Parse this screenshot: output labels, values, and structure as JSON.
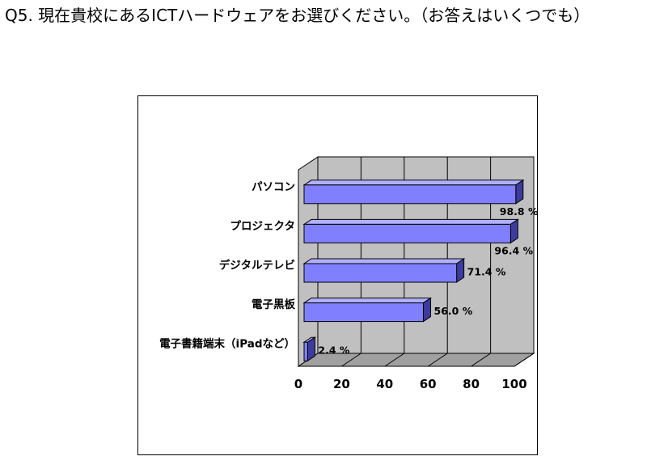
{
  "question": "Q5. 現在貴校にあるICTハードウェアをお選びください。（お答えはいくつでも）",
  "chart_data": {
    "type": "bar",
    "orientation": "horizontal",
    "three_d": true,
    "categories": [
      "パソコン",
      "プロジェクタ",
      "デジタルテレビ",
      "電子黒板",
      "電子書籍端末（iPadなど）"
    ],
    "values": [
      98.8,
      96.4,
      71.4,
      56.0,
      2.4
    ],
    "value_labels": [
      "98.8 %",
      "96.4 %",
      "71.4 %",
      "56.0 %",
      "2.4 %"
    ],
    "xlim": [
      0,
      100
    ],
    "xticks": [
      0,
      20,
      40,
      60,
      80,
      100
    ],
    "grid": true,
    "bar_color": "#8080ff",
    "wall_color": "#c0c0c0"
  }
}
